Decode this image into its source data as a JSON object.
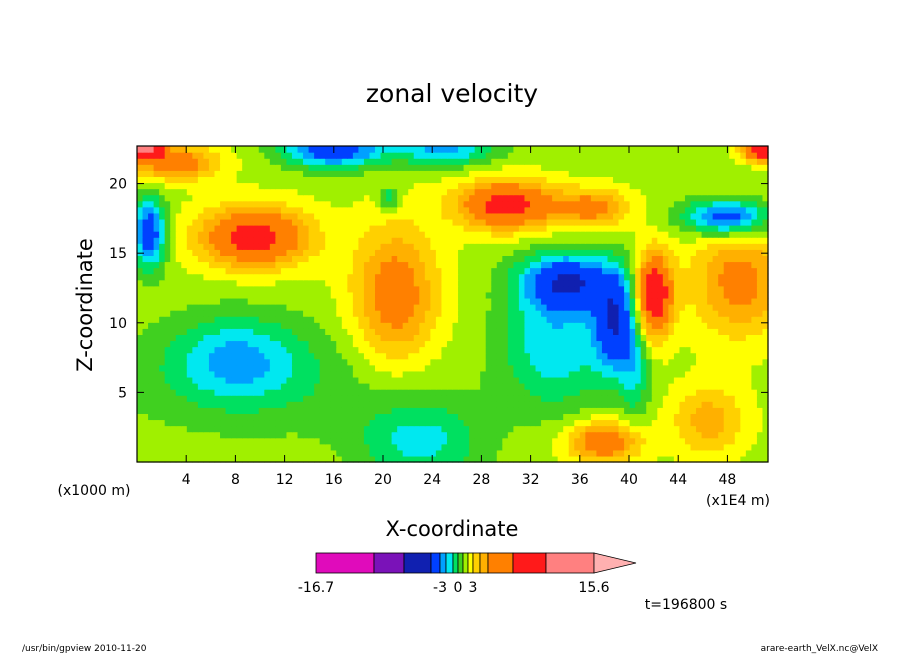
{
  "chart_data": {
    "type": "heatmap",
    "title": "zonal velocity",
    "xlabel": "X-coordinate",
    "ylabel": "Z-coordinate",
    "x_unit_left": "(x1000 m)",
    "x_unit_right": "(x1E4 m)",
    "xticks": [
      "4",
      "8",
      "12",
      "16",
      "20",
      "24",
      "28",
      "32",
      "36",
      "40",
      "44",
      "48"
    ],
    "xtick_values": [
      4,
      8,
      12,
      16,
      20,
      24,
      28,
      32,
      36,
      40,
      44,
      48
    ],
    "yticks": [
      "5",
      "10",
      "15",
      "20"
    ],
    "ytick_values": [
      5,
      10,
      15,
      20
    ],
    "xlim": [
      0,
      51.3
    ],
    "ylim": [
      0,
      22.7
    ],
    "time_label": "t=196800 s",
    "colorbar": {
      "labels": [
        "-16.7",
        "-3",
        "0",
        "3",
        "15.6"
      ],
      "label_values": [
        -16.7,
        -3,
        0,
        3,
        15.6
      ],
      "levels": [
        -16.7,
        -12,
        -7,
        -5,
        -3,
        -2,
        -1,
        0,
        1,
        2,
        3,
        4,
        5,
        7,
        11,
        15.6
      ],
      "colors": [
        "#e00bbb",
        "#7a12b8",
        "#1020b0",
        "#0040ff",
        "#00a0ff",
        "#00e8f0",
        "#00e060",
        "#40d020",
        "#a0f000",
        "#ffff00",
        "#ffd000",
        "#ffb000",
        "#ff8000",
        "#ff1a1a",
        "#ff8080",
        "#ffb0b0"
      ]
    },
    "field_scale": {
      "center_value": 0
    }
  },
  "footer": {
    "left": "/usr/bin/gpview   2010-11-20",
    "right": "arare-earth_VelX.nc@VelX"
  }
}
